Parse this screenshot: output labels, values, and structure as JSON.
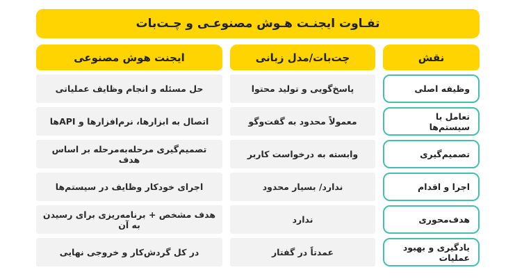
{
  "title": "تفـاوت ایجنـت هـوش مصنوعـی و چـت‌بات",
  "table": {
    "headers": {
      "role": "نقش",
      "chatbot": "چت‌بات/مدل زبانی",
      "agent": "ایجنت هوش مصنوعی"
    },
    "rows": [
      {
        "role": "وظیفه اصلی",
        "chatbot": "پاسخ‌گویی و تولید محتوا",
        "agent": "حل مسئله و انجام وظایف عملیاتی"
      },
      {
        "role": "تعامل با سیستم‌ها",
        "chatbot": "معمولاً محدود به گفت‌وگو",
        "agent": "اتصال به ابزارها، نرم‌افزارها و APIها"
      },
      {
        "role": "تصمیم‌گیری",
        "chatbot": "وابسته به درخواست کاربر",
        "agent": "تصمیم‌گیری مرحله‌به‌مرحله بر اساس هدف"
      },
      {
        "role": "اجرا و اقدام",
        "chatbot": "ندارد/ بسیار محدود",
        "agent": "اجرای خودکار وظایف در سیستم‌ها"
      },
      {
        "role": "هدف‌محوری",
        "chatbot": "ندارد",
        "agent": "هدف مشخص + برنامه‌ریزی برای رسیدن به آن"
      },
      {
        "role": "یادگیری و بهبود عملیات",
        "chatbot": "عمدتاً در گفتار",
        "agent": "در کل گردش‌کار و خروجی نهایی"
      }
    ]
  },
  "colors": {
    "accent_yellow": "#ffd400",
    "cell_gray": "#f2f2f2",
    "role_border_teal": "#43bfac",
    "text_dark": "#222222"
  }
}
